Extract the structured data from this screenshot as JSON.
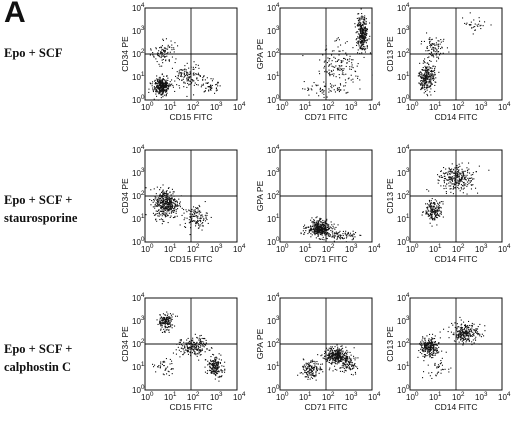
{
  "panel_letter": "A",
  "rows": [
    {
      "lines": [
        "Epo + SCF"
      ]
    },
    {
      "lines": [
        "Epo + SCF +",
        "staurosporine"
      ]
    },
    {
      "lines": [
        "Epo + SCF +",
        "calphostin C"
      ]
    }
  ],
  "tick_labels": [
    "10",
    "10",
    "10",
    "10",
    "10"
  ],
  "tick_exponents": [
    "0",
    "1",
    "2",
    "3",
    "4"
  ],
  "chart_data": [
    {
      "type": "scatter",
      "row": 0,
      "col": 0,
      "xlabel": "CD15 FITC",
      "ylabel": "CD34 PE",
      "xlim": [
        1,
        10000
      ],
      "ylim": [
        1,
        10000
      ],
      "log": true,
      "populations": [
        {
          "cx": 0.7,
          "cy": 0.6,
          "sx": 0.35,
          "sy": 0.4,
          "n": 320
        },
        {
          "cx": 1.9,
          "cy": 1.0,
          "sx": 0.6,
          "sy": 0.6,
          "n": 120
        },
        {
          "cx": 2.8,
          "cy": 0.6,
          "sx": 0.35,
          "sy": 0.3,
          "n": 50
        },
        {
          "cx": 0.8,
          "cy": 2.1,
          "sx": 0.5,
          "sy": 0.5,
          "n": 90
        }
      ]
    },
    {
      "type": "scatter",
      "row": 0,
      "col": 1,
      "xlabel": "CD71 FITC",
      "ylabel": "GPA PE",
      "xlim": [
        1,
        10000
      ],
      "ylim": [
        1,
        10000
      ],
      "log": true,
      "populations": [
        {
          "cx": 3.55,
          "cy": 2.9,
          "sx": 0.25,
          "sy": 0.8,
          "n": 300
        },
        {
          "cx": 2.5,
          "cy": 1.6,
          "sx": 0.9,
          "sy": 0.9,
          "n": 140
        },
        {
          "cx": 2.0,
          "cy": 0.5,
          "sx": 0.9,
          "sy": 0.35,
          "n": 60
        }
      ]
    },
    {
      "type": "scatter",
      "row": 0,
      "col": 2,
      "xlabel": "CD14 FITC",
      "ylabel": "CD13 PE",
      "xlim": [
        1,
        10000
      ],
      "ylim": [
        1,
        10000
      ],
      "log": true,
      "populations": [
        {
          "cx": 0.7,
          "cy": 1.0,
          "sx": 0.35,
          "sy": 0.6,
          "n": 260
        },
        {
          "cx": 1.0,
          "cy": 2.2,
          "sx": 0.45,
          "sy": 0.55,
          "n": 90
        },
        {
          "cx": 2.8,
          "cy": 3.3,
          "sx": 0.5,
          "sy": 0.4,
          "n": 30
        }
      ]
    },
    {
      "type": "scatter",
      "row": 1,
      "col": 0,
      "xlabel": "CD15 FITC",
      "ylabel": "CD34 PE",
      "xlim": [
        1,
        10000
      ],
      "ylim": [
        1,
        10000
      ],
      "log": true,
      "populations": [
        {
          "cx": 0.9,
          "cy": 1.7,
          "sx": 0.55,
          "sy": 0.65,
          "n": 380
        },
        {
          "cx": 2.2,
          "cy": 1.1,
          "sx": 0.5,
          "sy": 0.5,
          "n": 120
        }
      ]
    },
    {
      "type": "scatter",
      "row": 1,
      "col": 1,
      "xlabel": "CD71 FITC",
      "ylabel": "GPA PE",
      "xlim": [
        1,
        10000
      ],
      "ylim": [
        1,
        10000
      ],
      "log": true,
      "populations": [
        {
          "cx": 1.7,
          "cy": 0.6,
          "sx": 0.55,
          "sy": 0.35,
          "n": 380
        },
        {
          "cx": 2.7,
          "cy": 0.3,
          "sx": 0.6,
          "sy": 0.2,
          "n": 80
        }
      ]
    },
    {
      "type": "scatter",
      "row": 1,
      "col": 2,
      "xlabel": "CD14 FITC",
      "ylabel": "CD13 PE",
      "xlim": [
        1,
        10000
      ],
      "ylim": [
        1,
        10000
      ],
      "log": true,
      "populations": [
        {
          "cx": 1.0,
          "cy": 1.4,
          "sx": 0.35,
          "sy": 0.5,
          "n": 180
        },
        {
          "cx": 2.0,
          "cy": 2.8,
          "sx": 0.8,
          "sy": 0.55,
          "n": 260
        }
      ]
    },
    {
      "type": "scatter",
      "row": 2,
      "col": 0,
      "xlabel": "CD15 FITC",
      "ylabel": "CD34 PE",
      "xlim": [
        1,
        10000
      ],
      "ylim": [
        1,
        10000
      ],
      "log": true,
      "populations": [
        {
          "cx": 0.9,
          "cy": 3.0,
          "sx": 0.35,
          "sy": 0.35,
          "n": 150
        },
        {
          "cx": 2.1,
          "cy": 1.9,
          "sx": 0.6,
          "sy": 0.4,
          "n": 200
        },
        {
          "cx": 3.0,
          "cy": 1.0,
          "sx": 0.35,
          "sy": 0.45,
          "n": 170
        },
        {
          "cx": 0.9,
          "cy": 1.0,
          "sx": 0.5,
          "sy": 0.4,
          "n": 40
        }
      ]
    },
    {
      "type": "scatter",
      "row": 2,
      "col": 1,
      "xlabel": "CD71 FITC",
      "ylabel": "GPA PE",
      "xlim": [
        1,
        10000
      ],
      "ylim": [
        1,
        10000
      ],
      "log": true,
      "populations": [
        {
          "cx": 2.4,
          "cy": 1.5,
          "sx": 0.5,
          "sy": 0.35,
          "n": 300
        },
        {
          "cx": 1.3,
          "cy": 0.9,
          "sx": 0.45,
          "sy": 0.4,
          "n": 140
        },
        {
          "cx": 2.9,
          "cy": 1.2,
          "sx": 0.4,
          "sy": 0.4,
          "n": 120
        }
      ]
    },
    {
      "type": "scatter",
      "row": 2,
      "col": 2,
      "xlabel": "CD14 FITC",
      "ylabel": "CD13 PE",
      "xlim": [
        1,
        10000
      ],
      "ylim": [
        1,
        10000
      ],
      "log": true,
      "populations": [
        {
          "cx": 0.8,
          "cy": 1.9,
          "sx": 0.4,
          "sy": 0.45,
          "n": 230
        },
        {
          "cx": 2.4,
          "cy": 2.5,
          "sx": 0.6,
          "sy": 0.45,
          "n": 250
        },
        {
          "cx": 1.2,
          "cy": 1.0,
          "sx": 0.6,
          "sy": 0.5,
          "n": 40
        }
      ]
    }
  ]
}
